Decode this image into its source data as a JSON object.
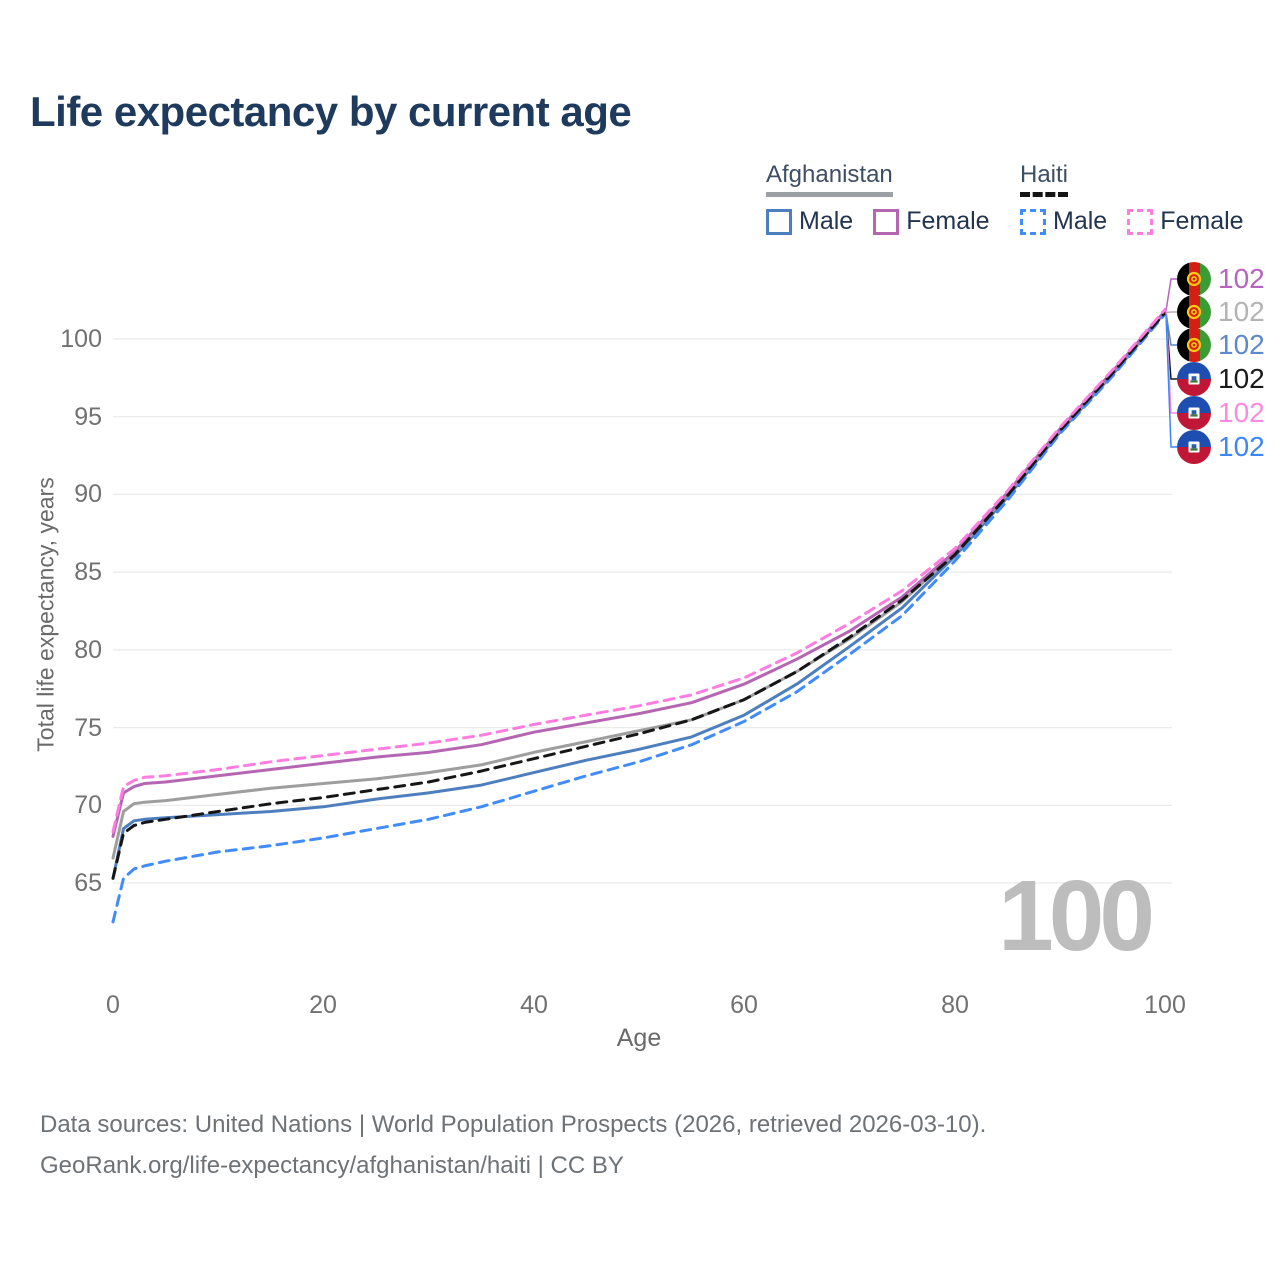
{
  "title": "Life expectancy by current age",
  "watermark": "100",
  "legend": {
    "groups": [
      {
        "label": "Afghanistan",
        "underline_style": "solid",
        "underline_color": "#9aa0a6",
        "items": [
          {
            "label": "Male",
            "color": "#4d7fbe",
            "dash": false
          },
          {
            "label": "Female",
            "color": "#b566b3",
            "dash": false
          }
        ]
      },
      {
        "label": "Haiti",
        "underline_style": "dashed",
        "underline_color": "#141414",
        "items": [
          {
            "label": "Male",
            "color": "#418cf8",
            "dash": true
          },
          {
            "label": "Female",
            "color": "#fd7de0",
            "dash": true
          }
        ]
      }
    ]
  },
  "end_labels": [
    {
      "series": "af_female",
      "country": "afghanistan",
      "value": "102",
      "color": "#b565bd"
    },
    {
      "series": "af_avg",
      "country": "afghanistan",
      "value": "102",
      "color": "#b3b3b3"
    },
    {
      "series": "af_male",
      "country": "afghanistan",
      "value": "102",
      "color": "#5c89ca"
    },
    {
      "series": "ht_avg",
      "country": "haiti",
      "value": "102",
      "color": "#1a1a1a"
    },
    {
      "series": "ht_female",
      "country": "haiti",
      "value": "102",
      "color": "#fc8ae0"
    },
    {
      "series": "ht_male",
      "country": "haiti",
      "value": "102",
      "color": "#3d87f5"
    }
  ],
  "footer": {
    "line1": "Data sources: United Nations | World Population Prospects (2026, retrieved 2026-03-10).",
    "line2": "GeoRank.org/life-expectancy/afghanistan/haiti | CC BY"
  },
  "chart_data": {
    "type": "line",
    "title": "Life expectancy by current age",
    "xlabel": "Age",
    "ylabel": "Total life expectancy, years",
    "xlim": [
      0,
      100
    ],
    "ylim": [
      62,
      103
    ],
    "xticks": [
      0,
      20,
      40,
      60,
      80,
      100
    ],
    "yticks": [
      65,
      70,
      75,
      80,
      85,
      90,
      95,
      100
    ],
    "grid": "horizontal",
    "legend_position": "top-right",
    "x": [
      0,
      1,
      2,
      3,
      5,
      10,
      15,
      20,
      25,
      30,
      35,
      40,
      45,
      50,
      55,
      60,
      65,
      70,
      75,
      80,
      85,
      90,
      95,
      100
    ],
    "series": [
      {
        "key": "af_male",
        "name": "Afghanistan Male",
        "color": "#4d7fbe",
        "dash": "solid",
        "values": [
          65.3,
          68.5,
          69.0,
          69.1,
          69.2,
          69.4,
          69.6,
          69.9,
          70.4,
          70.8,
          71.3,
          72.1,
          72.9,
          73.6,
          74.4,
          75.8,
          77.8,
          80.2,
          82.7,
          86.0,
          89.8,
          94.0,
          97.7,
          101.7
        ]
      },
      {
        "key": "af_avg",
        "name": "Afghanistan (both sexes)",
        "color": "#9e9e9e",
        "dash": "solid",
        "values": [
          66.6,
          69.6,
          70.1,
          70.2,
          70.3,
          70.7,
          71.1,
          71.4,
          71.7,
          72.1,
          72.6,
          73.4,
          74.1,
          74.8,
          75.5,
          76.8,
          78.6,
          80.7,
          83.1,
          86.2,
          90.0,
          94.1,
          97.8,
          101.7
        ]
      },
      {
        "key": "af_female",
        "name": "Afghanistan Female",
        "color": "#b566b3",
        "dash": "solid",
        "values": [
          68.0,
          70.8,
          71.2,
          71.4,
          71.5,
          71.9,
          72.3,
          72.7,
          73.1,
          73.4,
          73.9,
          74.7,
          75.3,
          75.9,
          76.6,
          77.8,
          79.4,
          81.2,
          83.4,
          86.3,
          90.1,
          94.2,
          97.9,
          101.8
        ]
      },
      {
        "key": "ht_male",
        "name": "Haiti Male",
        "color": "#418cf8",
        "dash": "dashed",
        "values": [
          62.5,
          65.3,
          65.9,
          66.1,
          66.4,
          67.0,
          67.4,
          67.9,
          68.5,
          69.1,
          69.9,
          70.9,
          71.9,
          72.8,
          73.9,
          75.4,
          77.3,
          79.7,
          82.2,
          85.7,
          89.6,
          93.9,
          97.6,
          101.6
        ]
      },
      {
        "key": "ht_avg",
        "name": "Haiti (both sexes)",
        "color": "#161616",
        "dash": "dashed",
        "values": [
          65.3,
          68.2,
          68.7,
          68.9,
          69.1,
          69.6,
          70.1,
          70.5,
          71.0,
          71.5,
          72.2,
          73.0,
          73.8,
          74.6,
          75.5,
          76.8,
          78.6,
          80.8,
          83.2,
          86.1,
          89.9,
          94.1,
          97.8,
          101.7
        ]
      },
      {
        "key": "ht_female",
        "name": "Haiti Female",
        "color": "#fd7de0",
        "dash": "dashed",
        "values": [
          68.3,
          71.2,
          71.6,
          71.8,
          71.9,
          72.3,
          72.8,
          73.2,
          73.6,
          74.0,
          74.5,
          75.2,
          75.8,
          76.4,
          77.1,
          78.2,
          79.8,
          81.7,
          83.8,
          86.5,
          90.2,
          94.3,
          98.0,
          101.9
        ]
      }
    ]
  }
}
